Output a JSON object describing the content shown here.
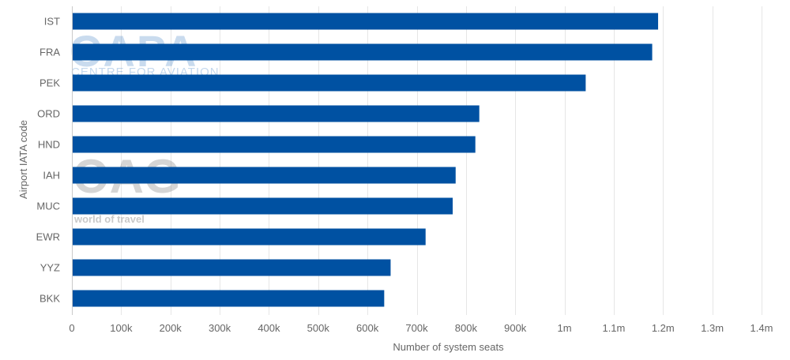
{
  "chart_data": {
    "type": "bar",
    "orientation": "horizontal",
    "categories": [
      "IST",
      "FRA",
      "PEK",
      "ORD",
      "HND",
      "IAH",
      "MUC",
      "EWR",
      "YYZ",
      "BKK"
    ],
    "values": [
      1190000,
      1178000,
      1043000,
      827000,
      819000,
      779000,
      773000,
      718000,
      647000,
      634000
    ],
    "xlabel": "Number of system seats",
    "ylabel": "Airport IATA code",
    "xlim": [
      0,
      1400000
    ],
    "x_ticks": [
      0,
      100000,
      200000,
      300000,
      400000,
      500000,
      600000,
      700000,
      800000,
      900000,
      1000000,
      1100000,
      1200000,
      1300000,
      1400000
    ],
    "x_tick_labels": [
      "0",
      "100k",
      "200k",
      "300k",
      "400k",
      "500k",
      "600k",
      "700k",
      "800k",
      "900k",
      "1m",
      "1.1m",
      "1.2m",
      "1.3m",
      "1.4m"
    ],
    "bar_color": "#0051a2",
    "grid": true,
    "legend": "none"
  },
  "watermarks": {
    "capa_title": "CAPA",
    "capa_subtitle": "CENTRE FOR AVIATION",
    "oag_title": "OAG",
    "oag_subtitle": "world of travel"
  }
}
